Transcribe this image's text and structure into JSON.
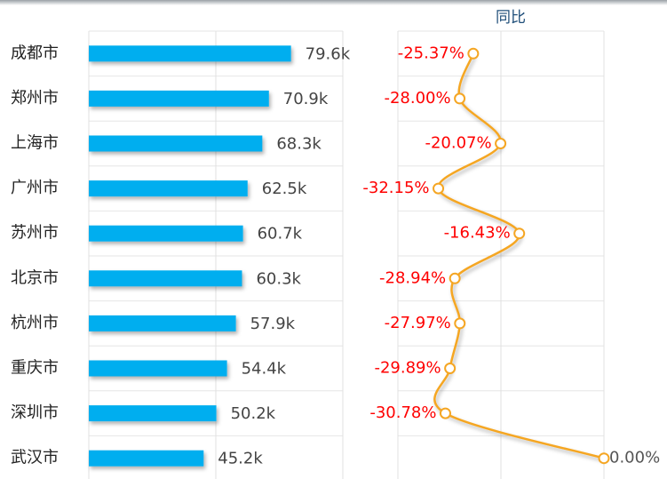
{
  "chart_data": [
    {
      "type": "hbar",
      "categories": [
        "成都市",
        "郑州市",
        "上海市",
        "广州市",
        "苏州市",
        "北京市",
        "杭州市",
        "重庆市",
        "深圳市",
        "武汉市"
      ],
      "values": [
        79.6,
        70.9,
        68.3,
        62.5,
        60.7,
        60.3,
        57.9,
        54.4,
        50.2,
        45.2
      ],
      "value_labels": [
        "79.6k",
        "70.9k",
        "68.3k",
        "62.5k",
        "60.7k",
        "60.3k",
        "57.9k",
        "54.4k",
        "50.2k",
        "45.2k"
      ],
      "color": "#00aeef",
      "xlim": [
        0,
        100
      ],
      "xticks": [
        0,
        50,
        100
      ],
      "grid": true
    },
    {
      "type": "hline",
      "title": "同比",
      "values": [
        -25.37,
        -28.0,
        -20.07,
        -32.15,
        -16.43,
        -28.94,
        -27.97,
        -29.89,
        -30.78,
        0.0
      ],
      "value_labels": [
        "-25.37%",
        "-28.00%",
        "-20.07%",
        "-32.15%",
        "-16.43%",
        "-28.94%",
        "-27.97%",
        "-29.89%",
        "-30.78%",
        "0.00%"
      ],
      "color": "#f5a623",
      "label_color": "#ff0000",
      "xlim": [
        -40,
        0
      ],
      "xticks": [
        -40,
        -20,
        0
      ],
      "grid": true
    }
  ]
}
